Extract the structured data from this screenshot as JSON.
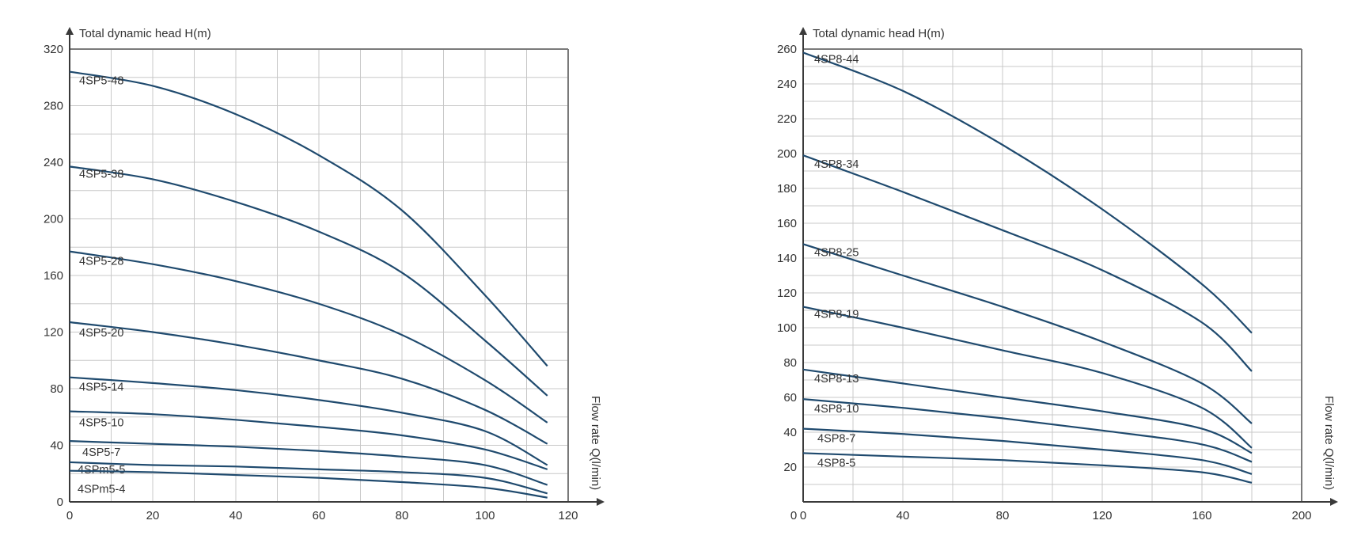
{
  "colors": {
    "curve": "#1f4a6e",
    "grid": "#c8c8c8",
    "axis": "#3a3a3a"
  },
  "chart_data": [
    {
      "type": "line",
      "ylabel": "Total dynamic head H(m)",
      "xlabel": "Flow rate Q(l/min)",
      "xlim": [
        0,
        120
      ],
      "ylim": [
        0,
        320
      ],
      "x_ticks": [
        0,
        20,
        40,
        60,
        80,
        100,
        120
      ],
      "y_ticks": [
        0,
        40,
        80,
        120,
        160,
        200,
        240,
        280,
        320
      ],
      "x_grid_step": 10,
      "y_grid_step": 20,
      "grid": true,
      "series": [
        {
          "name": "4SP5-48",
          "points": [
            [
              0,
              304
            ],
            [
              20,
              294
            ],
            [
              40,
              274
            ],
            [
              60,
              245
            ],
            [
              80,
              206
            ],
            [
              100,
              146
            ],
            [
              115,
              96
            ]
          ]
        },
        {
          "name": "4SP5-38",
          "points": [
            [
              0,
              237
            ],
            [
              20,
              228
            ],
            [
              40,
              212
            ],
            [
              60,
              191
            ],
            [
              80,
              162
            ],
            [
              100,
              114
            ],
            [
              115,
              75
            ]
          ]
        },
        {
          "name": "4SP5-28",
          "points": [
            [
              0,
              177
            ],
            [
              20,
              168
            ],
            [
              40,
              156
            ],
            [
              60,
              140
            ],
            [
              80,
              118
            ],
            [
              100,
              86
            ],
            [
              115,
              56
            ]
          ]
        },
        {
          "name": "4SP5-20",
          "points": [
            [
              0,
              127
            ],
            [
              20,
              120
            ],
            [
              40,
              111
            ],
            [
              60,
              100
            ],
            [
              80,
              87
            ],
            [
              100,
              65
            ],
            [
              115,
              41
            ]
          ]
        },
        {
          "name": "4SP5-14",
          "points": [
            [
              0,
              88
            ],
            [
              20,
              84
            ],
            [
              40,
              79
            ],
            [
              60,
              72
            ],
            [
              80,
              63
            ],
            [
              100,
              50
            ],
            [
              115,
              26
            ]
          ]
        },
        {
          "name": "4SP5-10",
          "points": [
            [
              0,
              64
            ],
            [
              20,
              62
            ],
            [
              40,
              58
            ],
            [
              60,
              53
            ],
            [
              80,
              47
            ],
            [
              100,
              37
            ],
            [
              115,
              23
            ]
          ]
        },
        {
          "name": "4SP5-7",
          "points": [
            [
              0,
              43
            ],
            [
              20,
              41
            ],
            [
              40,
              39
            ],
            [
              60,
              36
            ],
            [
              80,
              32
            ],
            [
              100,
              26
            ],
            [
              115,
              12
            ]
          ]
        },
        {
          "name": "4SPm5-5",
          "points": [
            [
              0,
              28
            ],
            [
              20,
              26
            ],
            [
              40,
              25
            ],
            [
              60,
              23
            ],
            [
              80,
              21
            ],
            [
              100,
              17
            ],
            [
              115,
              6
            ]
          ]
        },
        {
          "name": "4SPm5-4",
          "points": [
            [
              0,
              22
            ],
            [
              20,
              21
            ],
            [
              40,
              19
            ],
            [
              60,
              17
            ],
            [
              80,
              14
            ],
            [
              100,
              10
            ],
            [
              115,
              3
            ]
          ]
        }
      ]
    },
    {
      "type": "line",
      "ylabel": "Total dynamic head H(m)",
      "xlabel": "Flow rate Q(l/min)",
      "xlim": [
        0,
        200
      ],
      "ylim": [
        0,
        260
      ],
      "x_ticks": [
        0,
        40,
        80,
        120,
        160,
        200
      ],
      "x_origin_label": "0",
      "y_ticks": [
        20,
        40,
        60,
        80,
        100,
        120,
        140,
        160,
        180,
        200,
        220,
        240,
        260
      ],
      "x_grid_step": 20,
      "y_grid_step": 10,
      "grid": true,
      "series": [
        {
          "name": "4SP8-44",
          "points": [
            [
              0,
              258
            ],
            [
              40,
              236
            ],
            [
              80,
              205
            ],
            [
              120,
              168
            ],
            [
              160,
              125
            ],
            [
              180,
              97
            ]
          ]
        },
        {
          "name": "4SP8-34",
          "points": [
            [
              0,
              199
            ],
            [
              40,
              178
            ],
            [
              80,
              156
            ],
            [
              120,
              133
            ],
            [
              160,
              103
            ],
            [
              180,
              75
            ]
          ]
        },
        {
          "name": "4SP8-25",
          "points": [
            [
              0,
              148
            ],
            [
              40,
              130
            ],
            [
              80,
              112
            ],
            [
              120,
              92
            ],
            [
              160,
              68
            ],
            [
              180,
              45
            ]
          ]
        },
        {
          "name": "4SP8-19",
          "points": [
            [
              0,
              112
            ],
            [
              40,
              100
            ],
            [
              80,
              87
            ],
            [
              120,
              74
            ],
            [
              160,
              54
            ],
            [
              180,
              31
            ]
          ]
        },
        {
          "name": "4SP8-13",
          "points": [
            [
              0,
              76
            ],
            [
              40,
              68
            ],
            [
              80,
              60
            ],
            [
              120,
              52
            ],
            [
              160,
              42
            ],
            [
              180,
              28
            ]
          ]
        },
        {
          "name": "4SP8-10",
          "points": [
            [
              0,
              59
            ],
            [
              40,
              54
            ],
            [
              80,
              48
            ],
            [
              120,
              41
            ],
            [
              160,
              33
            ],
            [
              180,
              23
            ]
          ]
        },
        {
          "name": "4SP8-7",
          "points": [
            [
              0,
              42
            ],
            [
              40,
              39
            ],
            [
              80,
              35
            ],
            [
              120,
              30
            ],
            [
              160,
              24
            ],
            [
              180,
              16
            ]
          ]
        },
        {
          "name": "4SP8-5",
          "points": [
            [
              0,
              28
            ],
            [
              40,
              26
            ],
            [
              80,
              24
            ],
            [
              120,
              21
            ],
            [
              160,
              17
            ],
            [
              180,
              11
            ]
          ]
        }
      ]
    }
  ]
}
